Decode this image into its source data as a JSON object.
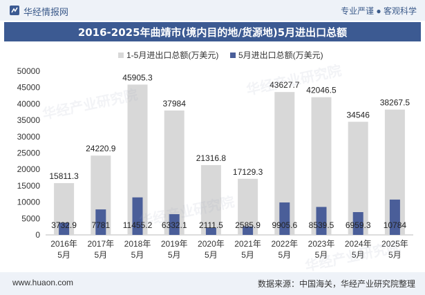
{
  "header": {
    "brand": "华经情报网",
    "tagline": "专业严谨 ● 客观科学"
  },
  "title": "2016-2025年曲靖市(境内目的地/货源地)5月进出口总额",
  "footer": {
    "url": "www.huaon.com",
    "source": "数据来源：中国海关，华经产业研究院整理"
  },
  "watermark": "华经产业研究院",
  "colors": {
    "accent": "#3c5a92",
    "series1": "#d8d8d8",
    "series2": "#4a5e99"
  },
  "chart_data": {
    "type": "bar",
    "categories": [
      "2016年5月",
      "2017年5月",
      "2018年5月",
      "2019年5月",
      "2020年5月",
      "2021年5月",
      "2022年5月",
      "2023年5月",
      "2024年5月",
      "2025年5月"
    ],
    "category_lines": [
      [
        "2016年",
        "5月"
      ],
      [
        "2017年",
        "5月"
      ],
      [
        "2018年",
        "5月"
      ],
      [
        "2019年",
        "5月"
      ],
      [
        "2020年",
        "5月"
      ],
      [
        "2021年",
        "5月"
      ],
      [
        "2022年",
        "5月"
      ],
      [
        "2023年",
        "5月"
      ],
      [
        "2024年",
        "5月"
      ],
      [
        "2025年",
        "5月"
      ]
    ],
    "series": [
      {
        "name": "1-5月进出口总额(万美元)",
        "values": [
          15811.3,
          24220.9,
          45905.3,
          37984,
          21316.8,
          17129.3,
          43627.7,
          42046.5,
          34546,
          38267.5
        ],
        "labels": [
          "15811.3",
          "24220.9",
          "45905.3",
          "37984",
          "21316.8",
          "17129.3",
          "43627.7",
          "42046.5",
          "34546",
          "38267.5"
        ]
      },
      {
        "name": "5月进出口总额(万美元)",
        "values": [
          3732.9,
          7781,
          11455.2,
          6332.1,
          2111.5,
          2585.9,
          9905.6,
          8539.5,
          6959.3,
          10784
        ],
        "labels": [
          "3732.9",
          "7781",
          "11455.2",
          "6332.1",
          "2111.5",
          "2585.9",
          "9905.6",
          "8539.5",
          "6959.3",
          "10784"
        ]
      }
    ],
    "ylim": [
      0,
      50000
    ],
    "yticks": [
      "0",
      "5000",
      "10000",
      "15000",
      "20000",
      "25000",
      "30000",
      "35000",
      "40000",
      "45000",
      "50000"
    ],
    "legend_position": "top",
    "grid": false
  }
}
